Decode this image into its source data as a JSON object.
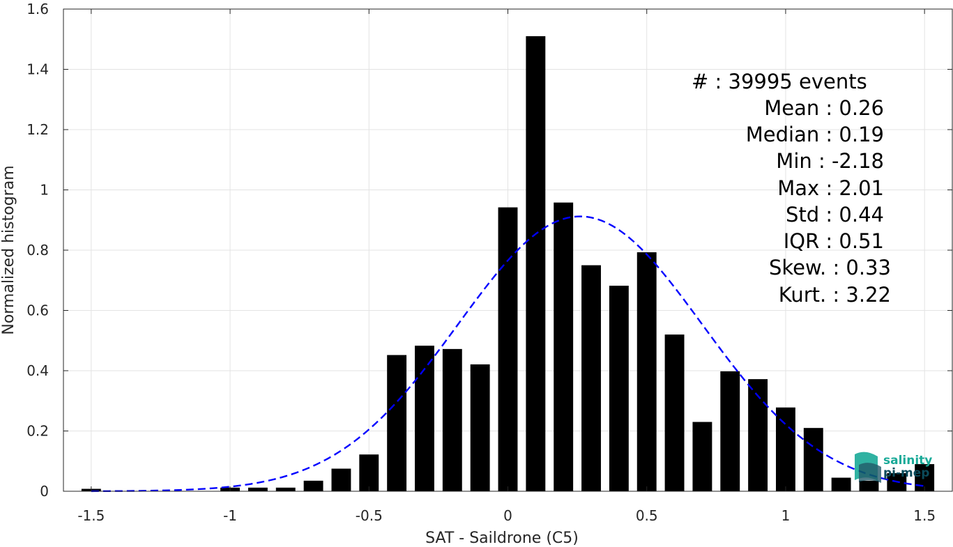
{
  "chart_data": {
    "type": "bar",
    "xlabel": "SAT - Saildrone (C5)",
    "ylabel": "Normalized histogram",
    "xlim": [
      -1.6,
      1.6
    ],
    "ylim": [
      0,
      1.6
    ],
    "xticks": [
      -1.5,
      -1,
      -0.5,
      0,
      0.5,
      1,
      1.5
    ],
    "xtick_labels": [
      "-1.5",
      "-1",
      "-0.5",
      "0",
      "0.5",
      "1",
      "1.5"
    ],
    "yticks": [
      0,
      0.2,
      0.4,
      0.6,
      0.8,
      1,
      1.2,
      1.4,
      1.6
    ],
    "ytick_labels": [
      "0",
      "0.2",
      "0.4",
      "0.6",
      "0.8",
      "1",
      "1.2",
      "1.4",
      "1.6"
    ],
    "grid": true,
    "bar_color": "#000000",
    "bin_width": 0.1,
    "bins": [
      {
        "x": -1.5,
        "y": 0.008
      },
      {
        "x": -1.0,
        "y": 0.012
      },
      {
        "x": -0.9,
        "y": 0.012
      },
      {
        "x": -0.8,
        "y": 0.012
      },
      {
        "x": -0.7,
        "y": 0.035
      },
      {
        "x": -0.6,
        "y": 0.075
      },
      {
        "x": -0.5,
        "y": 0.122
      },
      {
        "x": -0.4,
        "y": 0.452
      },
      {
        "x": -0.3,
        "y": 0.483
      },
      {
        "x": -0.2,
        "y": 0.472
      },
      {
        "x": -0.1,
        "y": 0.421
      },
      {
        "x": 0.0,
        "y": 0.942
      },
      {
        "x": 0.1,
        "y": 1.51
      },
      {
        "x": 0.2,
        "y": 0.958
      },
      {
        "x": 0.3,
        "y": 0.75
      },
      {
        "x": 0.4,
        "y": 0.682
      },
      {
        "x": 0.5,
        "y": 0.793
      },
      {
        "x": 0.6,
        "y": 0.52
      },
      {
        "x": 0.7,
        "y": 0.23
      },
      {
        "x": 0.8,
        "y": 0.398
      },
      {
        "x": 0.9,
        "y": 0.372
      },
      {
        "x": 1.0,
        "y": 0.278
      },
      {
        "x": 1.1,
        "y": 0.21
      },
      {
        "x": 1.2,
        "y": 0.045
      },
      {
        "x": 1.3,
        "y": 0.035
      },
      {
        "x": 1.4,
        "y": 0.06
      },
      {
        "x": 1.5,
        "y": 0.09
      }
    ],
    "fit": {
      "type": "gaussian",
      "mean": 0.26,
      "std": 0.44,
      "peak": 0.912,
      "color": "#0000ff",
      "style": "dashed",
      "x_range": [
        -1.5,
        1.5
      ]
    },
    "stats": {
      "events": "#  : 39995 events",
      "mean": "Mean : 0.26",
      "median": "Median : 0.19",
      "min": "Min : -2.18",
      "max": "Max : 2.01",
      "std": "Std : 0.44",
      "iqr": "IQR : 0.51",
      "skew": "Skew. : 0.33",
      "kurt": "Kurt. : 3.22"
    }
  },
  "logo": {
    "line1": "salinity",
    "line2": "pi-mep",
    "color1": "#1aaa98",
    "color2": "#0b4a5a"
  }
}
